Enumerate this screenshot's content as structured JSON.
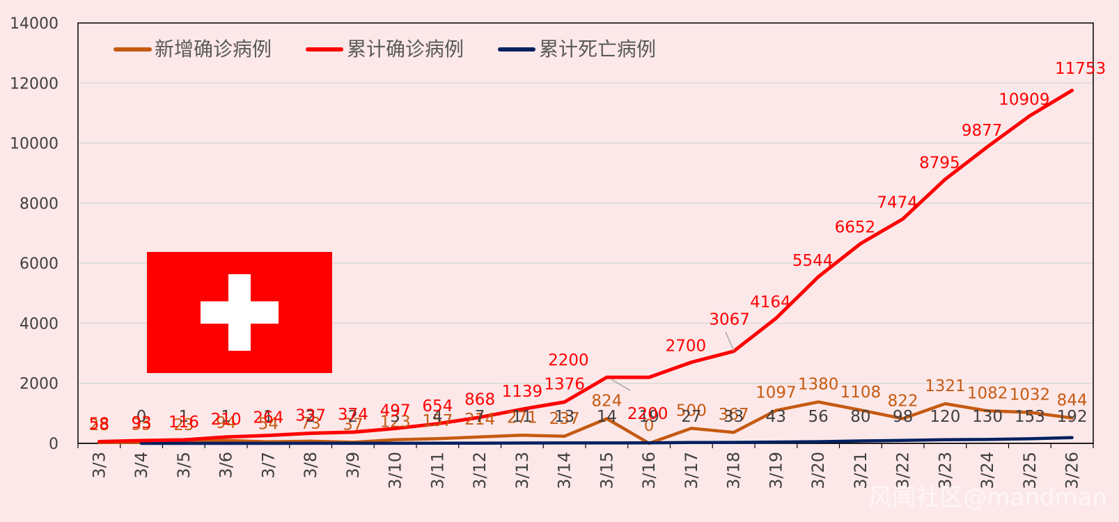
{
  "chart_data": {
    "type": "line",
    "title": "",
    "xlabel": "",
    "ylabel": "",
    "ylim": [
      0,
      14000
    ],
    "yticks": [
      0,
      2000,
      4000,
      6000,
      8000,
      10000,
      12000,
      14000
    ],
    "grid": "horizontal",
    "legend_position": "top-left",
    "categories": [
      "3/3",
      "3/4",
      "3/5",
      "3/6",
      "3/7",
      "3/8",
      "3/9",
      "3/10",
      "3/11",
      "3/12",
      "3/13",
      "3/14",
      "3/15",
      "3/16",
      "3/17",
      "3/18",
      "3/19",
      "3/20",
      "3/21",
      "3/22",
      "3/23",
      "3/24",
      "3/25",
      "3/26"
    ],
    "series": [
      {
        "name": "新增确诊病例",
        "color": "#c55a11",
        "values": [
          28,
          35,
          23,
          94,
          54,
          73,
          37,
          123,
          157,
          214,
          271,
          237,
          824,
          0,
          500,
          367,
          1097,
          1380,
          1108,
          822,
          1321,
          1082,
          1032,
          844
        ]
      },
      {
        "name": "累计确诊病例",
        "color": "#ff0000",
        "values": [
          58,
          93,
          116,
          210,
          264,
          337,
          374,
          497,
          654,
          868,
          1139,
          1376,
          2200,
          2200,
          2700,
          3067,
          4164,
          5544,
          6652,
          7474,
          8795,
          9877,
          10909,
          11753
        ]
      },
      {
        "name": "累计死亡病例",
        "color": "#002060",
        "values": [
          null,
          0,
          1,
          1,
          1,
          2,
          2,
          3,
          4,
          7,
          11,
          13,
          14,
          19,
          27,
          33,
          43,
          56,
          80,
          98,
          120,
          130,
          153,
          192
        ]
      }
    ]
  },
  "flag": {
    "name": "switzerland-flag",
    "color": "#ff0000",
    "cross_color": "#ffffff"
  },
  "watermark": "风闻社区@mandman"
}
